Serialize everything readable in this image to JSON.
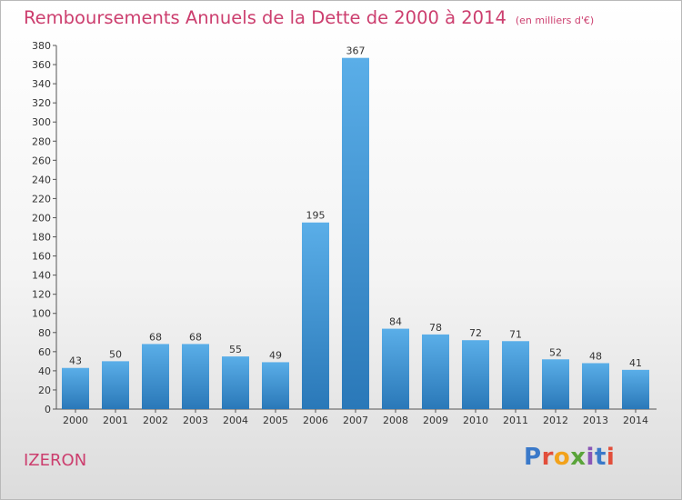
{
  "header": {
    "title": "Remboursements Annuels de la Dette de 2000 à 2014",
    "subtitle": "(en milliers d'€)"
  },
  "footer": {
    "commune": "IZERON",
    "logo": "Proxiti"
  },
  "colors": {
    "title": "#cc3e6e",
    "bar_light": "#5aaee8",
    "bar_dark": "#2a78b8"
  },
  "chart_data": {
    "type": "bar",
    "title": "Remboursements Annuels de la Dette de 2000 à 2014",
    "subtitle": "(en milliers d'€)",
    "xlabel": "",
    "ylabel": "",
    "categories": [
      "2000",
      "2001",
      "2002",
      "2003",
      "2004",
      "2005",
      "2006",
      "2007",
      "2008",
      "2009",
      "2010",
      "2011",
      "2012",
      "2013",
      "2014"
    ],
    "values": [
      43,
      50,
      68,
      68,
      55,
      49,
      195,
      367,
      84,
      78,
      72,
      71,
      52,
      48,
      41
    ],
    "ylim": [
      0,
      380
    ],
    "yticks": [
      0,
      20,
      40,
      60,
      80,
      100,
      120,
      140,
      160,
      180,
      200,
      220,
      240,
      260,
      280,
      300,
      320,
      340,
      360,
      380
    ],
    "grid": false,
    "data_labels": true
  }
}
